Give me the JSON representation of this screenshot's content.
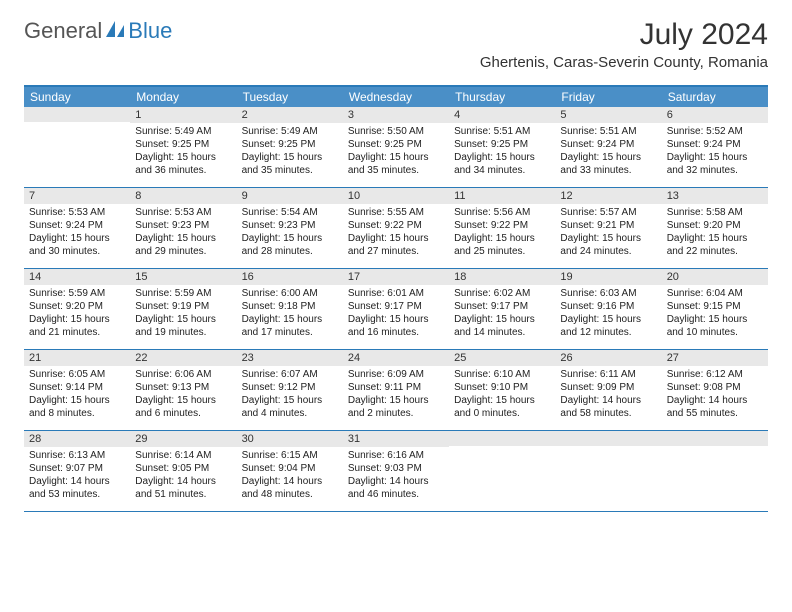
{
  "logo": {
    "text_general": "General",
    "text_blue": "Blue",
    "color_general": "#555555",
    "color_blue": "#2a7ab8"
  },
  "header": {
    "title": "July 2024",
    "location": "Ghertenis, Caras-Severin County, Romania"
  },
  "colors": {
    "header_bar": "#4a8fc7",
    "border": "#2a7ab8",
    "daynum_bg": "#e8e8e8",
    "text": "#222222",
    "background": "#ffffff"
  },
  "dow": [
    "Sunday",
    "Monday",
    "Tuesday",
    "Wednesday",
    "Thursday",
    "Friday",
    "Saturday"
  ],
  "weeks": [
    [
      {
        "n": "",
        "sr": "",
        "ss": "",
        "dl": ""
      },
      {
        "n": "1",
        "sr": "Sunrise: 5:49 AM",
        "ss": "Sunset: 9:25 PM",
        "dl": "Daylight: 15 hours and 36 minutes."
      },
      {
        "n": "2",
        "sr": "Sunrise: 5:49 AM",
        "ss": "Sunset: 9:25 PM",
        "dl": "Daylight: 15 hours and 35 minutes."
      },
      {
        "n": "3",
        "sr": "Sunrise: 5:50 AM",
        "ss": "Sunset: 9:25 PM",
        "dl": "Daylight: 15 hours and 35 minutes."
      },
      {
        "n": "4",
        "sr": "Sunrise: 5:51 AM",
        "ss": "Sunset: 9:25 PM",
        "dl": "Daylight: 15 hours and 34 minutes."
      },
      {
        "n": "5",
        "sr": "Sunrise: 5:51 AM",
        "ss": "Sunset: 9:24 PM",
        "dl": "Daylight: 15 hours and 33 minutes."
      },
      {
        "n": "6",
        "sr": "Sunrise: 5:52 AM",
        "ss": "Sunset: 9:24 PM",
        "dl": "Daylight: 15 hours and 32 minutes."
      }
    ],
    [
      {
        "n": "7",
        "sr": "Sunrise: 5:53 AM",
        "ss": "Sunset: 9:24 PM",
        "dl": "Daylight: 15 hours and 30 minutes."
      },
      {
        "n": "8",
        "sr": "Sunrise: 5:53 AM",
        "ss": "Sunset: 9:23 PM",
        "dl": "Daylight: 15 hours and 29 minutes."
      },
      {
        "n": "9",
        "sr": "Sunrise: 5:54 AM",
        "ss": "Sunset: 9:23 PM",
        "dl": "Daylight: 15 hours and 28 minutes."
      },
      {
        "n": "10",
        "sr": "Sunrise: 5:55 AM",
        "ss": "Sunset: 9:22 PM",
        "dl": "Daylight: 15 hours and 27 minutes."
      },
      {
        "n": "11",
        "sr": "Sunrise: 5:56 AM",
        "ss": "Sunset: 9:22 PM",
        "dl": "Daylight: 15 hours and 25 minutes."
      },
      {
        "n": "12",
        "sr": "Sunrise: 5:57 AM",
        "ss": "Sunset: 9:21 PM",
        "dl": "Daylight: 15 hours and 24 minutes."
      },
      {
        "n": "13",
        "sr": "Sunrise: 5:58 AM",
        "ss": "Sunset: 9:20 PM",
        "dl": "Daylight: 15 hours and 22 minutes."
      }
    ],
    [
      {
        "n": "14",
        "sr": "Sunrise: 5:59 AM",
        "ss": "Sunset: 9:20 PM",
        "dl": "Daylight: 15 hours and 21 minutes."
      },
      {
        "n": "15",
        "sr": "Sunrise: 5:59 AM",
        "ss": "Sunset: 9:19 PM",
        "dl": "Daylight: 15 hours and 19 minutes."
      },
      {
        "n": "16",
        "sr": "Sunrise: 6:00 AM",
        "ss": "Sunset: 9:18 PM",
        "dl": "Daylight: 15 hours and 17 minutes."
      },
      {
        "n": "17",
        "sr": "Sunrise: 6:01 AM",
        "ss": "Sunset: 9:17 PM",
        "dl": "Daylight: 15 hours and 16 minutes."
      },
      {
        "n": "18",
        "sr": "Sunrise: 6:02 AM",
        "ss": "Sunset: 9:17 PM",
        "dl": "Daylight: 15 hours and 14 minutes."
      },
      {
        "n": "19",
        "sr": "Sunrise: 6:03 AM",
        "ss": "Sunset: 9:16 PM",
        "dl": "Daylight: 15 hours and 12 minutes."
      },
      {
        "n": "20",
        "sr": "Sunrise: 6:04 AM",
        "ss": "Sunset: 9:15 PM",
        "dl": "Daylight: 15 hours and 10 minutes."
      }
    ],
    [
      {
        "n": "21",
        "sr": "Sunrise: 6:05 AM",
        "ss": "Sunset: 9:14 PM",
        "dl": "Daylight: 15 hours and 8 minutes."
      },
      {
        "n": "22",
        "sr": "Sunrise: 6:06 AM",
        "ss": "Sunset: 9:13 PM",
        "dl": "Daylight: 15 hours and 6 minutes."
      },
      {
        "n": "23",
        "sr": "Sunrise: 6:07 AM",
        "ss": "Sunset: 9:12 PM",
        "dl": "Daylight: 15 hours and 4 minutes."
      },
      {
        "n": "24",
        "sr": "Sunrise: 6:09 AM",
        "ss": "Sunset: 9:11 PM",
        "dl": "Daylight: 15 hours and 2 minutes."
      },
      {
        "n": "25",
        "sr": "Sunrise: 6:10 AM",
        "ss": "Sunset: 9:10 PM",
        "dl": "Daylight: 15 hours and 0 minutes."
      },
      {
        "n": "26",
        "sr": "Sunrise: 6:11 AM",
        "ss": "Sunset: 9:09 PM",
        "dl": "Daylight: 14 hours and 58 minutes."
      },
      {
        "n": "27",
        "sr": "Sunrise: 6:12 AM",
        "ss": "Sunset: 9:08 PM",
        "dl": "Daylight: 14 hours and 55 minutes."
      }
    ],
    [
      {
        "n": "28",
        "sr": "Sunrise: 6:13 AM",
        "ss": "Sunset: 9:07 PM",
        "dl": "Daylight: 14 hours and 53 minutes."
      },
      {
        "n": "29",
        "sr": "Sunrise: 6:14 AM",
        "ss": "Sunset: 9:05 PM",
        "dl": "Daylight: 14 hours and 51 minutes."
      },
      {
        "n": "30",
        "sr": "Sunrise: 6:15 AM",
        "ss": "Sunset: 9:04 PM",
        "dl": "Daylight: 14 hours and 48 minutes."
      },
      {
        "n": "31",
        "sr": "Sunrise: 6:16 AM",
        "ss": "Sunset: 9:03 PM",
        "dl": "Daylight: 14 hours and 46 minutes."
      },
      {
        "n": "",
        "sr": "",
        "ss": "",
        "dl": ""
      },
      {
        "n": "",
        "sr": "",
        "ss": "",
        "dl": ""
      },
      {
        "n": "",
        "sr": "",
        "ss": "",
        "dl": ""
      }
    ]
  ]
}
